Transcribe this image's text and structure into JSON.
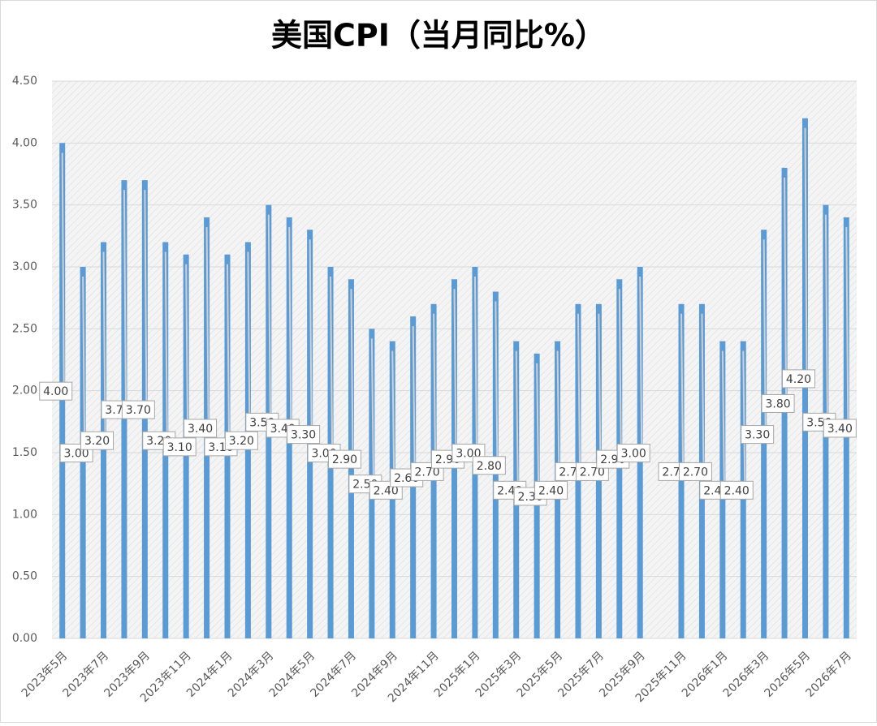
{
  "chart_data": {
    "type": "bar",
    "title": "美国CPI（当月同比%）",
    "categories": [
      "2023年5月",
      null,
      "2023年7月",
      null,
      "2023年9月",
      null,
      "2023年11月",
      null,
      "2024年1月",
      null,
      "2024年3月",
      null,
      "2024年5月",
      null,
      "2024年7月",
      null,
      "2024年9月",
      null,
      "2024年11月",
      null,
      "2025年1月",
      null,
      "2025年3月",
      null,
      "2025年5月",
      null,
      "2025年7月",
      null,
      "2025年9月",
      null,
      "2025年11月",
      null,
      "2026年1月",
      null,
      "2026年3月",
      null,
      "2026年5月",
      null,
      "2026年7月"
    ],
    "values": [
      4.0,
      3.0,
      3.2,
      3.7,
      3.7,
      3.2,
      3.1,
      3.4,
      3.1,
      3.2,
      3.5,
      3.4,
      3.3,
      3.0,
      2.9,
      2.5,
      2.4,
      2.6,
      2.7,
      2.9,
      3.0,
      2.8,
      2.4,
      2.3,
      2.4,
      2.7,
      2.7,
      2.9,
      3.0,
      null,
      2.7,
      2.7,
      2.4,
      2.4,
      3.3,
      3.8,
      4.2,
      3.5,
      3.4
    ],
    "value_labels": [
      "4.00",
      "3.00",
      "3.20",
      "3.70",
      "3.70",
      "3.20",
      "3.10",
      "3.40",
      "3.10",
      "3.20",
      "3.50",
      "3.40",
      "3.30",
      "3.00",
      "2.90",
      "2.50",
      "2.40",
      "2.60",
      "2.70",
      "2.90",
      "3.00",
      "2.80",
      "2.40",
      "2.30",
      "2.40",
      "2.70",
      "2.70",
      "2.90",
      "3.00",
      null,
      "2.70",
      "2.70",
      "2.40",
      "2.40",
      "3.30",
      "3.80",
      "4.20",
      "3.50",
      "3.40"
    ],
    "color": "#5b9bd5",
    "ylim": [
      0,
      4.5
    ],
    "yticks": [
      {
        "value": 0,
        "label": "0.00"
      },
      {
        "value": 0.5,
        "label": "0.50"
      },
      {
        "value": 1,
        "label": "1.00"
      },
      {
        "value": 1.5,
        "label": "1.50"
      },
      {
        "value": 2,
        "label": "2.00"
      },
      {
        "value": 2.5,
        "label": "2.50"
      },
      {
        "value": 3,
        "label": "3.00"
      },
      {
        "value": 3.5,
        "label": "3.50"
      },
      {
        "value": 4,
        "label": "4.00"
      },
      {
        "value": 4.5,
        "label": "4.50"
      }
    ],
    "grid": true
  }
}
